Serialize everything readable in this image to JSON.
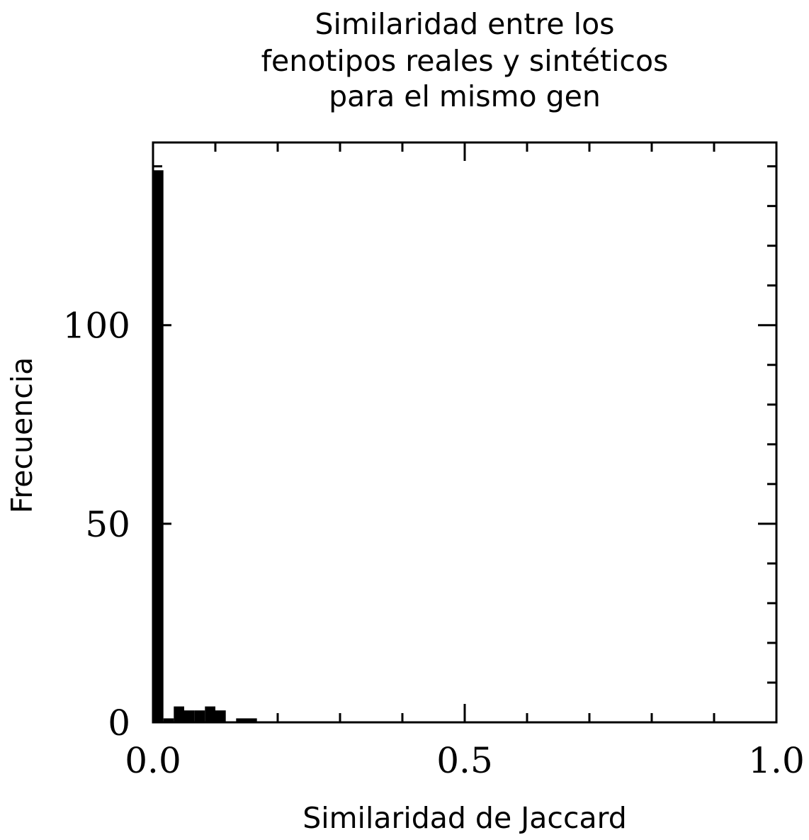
{
  "chart_data": {
    "type": "bar",
    "title_lines": [
      "Similaridad entre los",
      "fenotipos reales y sintéticos",
      "para el mismo gen"
    ],
    "xlabel": "Similaridad de Jaccard",
    "ylabel": "Frecuencia",
    "xlim": [
      0,
      1
    ],
    "ylim": [
      0,
      146
    ],
    "x_ticks": [
      0,
      0.5,
      1.0
    ],
    "x_tick_labels": [
      "0.0",
      "0.5",
      "1.0"
    ],
    "y_ticks": [
      0,
      50,
      100
    ],
    "y_tick_labels": [
      "0",
      "50",
      "100"
    ],
    "grid": false,
    "bin_width": 0.0167,
    "bins": [
      {
        "x0": 0.0,
        "x1": 0.0167,
        "count": 139
      },
      {
        "x0": 0.0167,
        "x1": 0.0333,
        "count": 1
      },
      {
        "x0": 0.0333,
        "x1": 0.05,
        "count": 4
      },
      {
        "x0": 0.05,
        "x1": 0.0667,
        "count": 3
      },
      {
        "x0": 0.0667,
        "x1": 0.0833,
        "count": 3
      },
      {
        "x0": 0.0833,
        "x1": 0.1,
        "count": 4
      },
      {
        "x0": 0.1,
        "x1": 0.1167,
        "count": 3
      },
      {
        "x0": 0.1333,
        "x1": 0.15,
        "count": 1
      },
      {
        "x0": 0.15,
        "x1": 0.1667,
        "count": 1
      }
    ],
    "bar_color": "#000000"
  }
}
